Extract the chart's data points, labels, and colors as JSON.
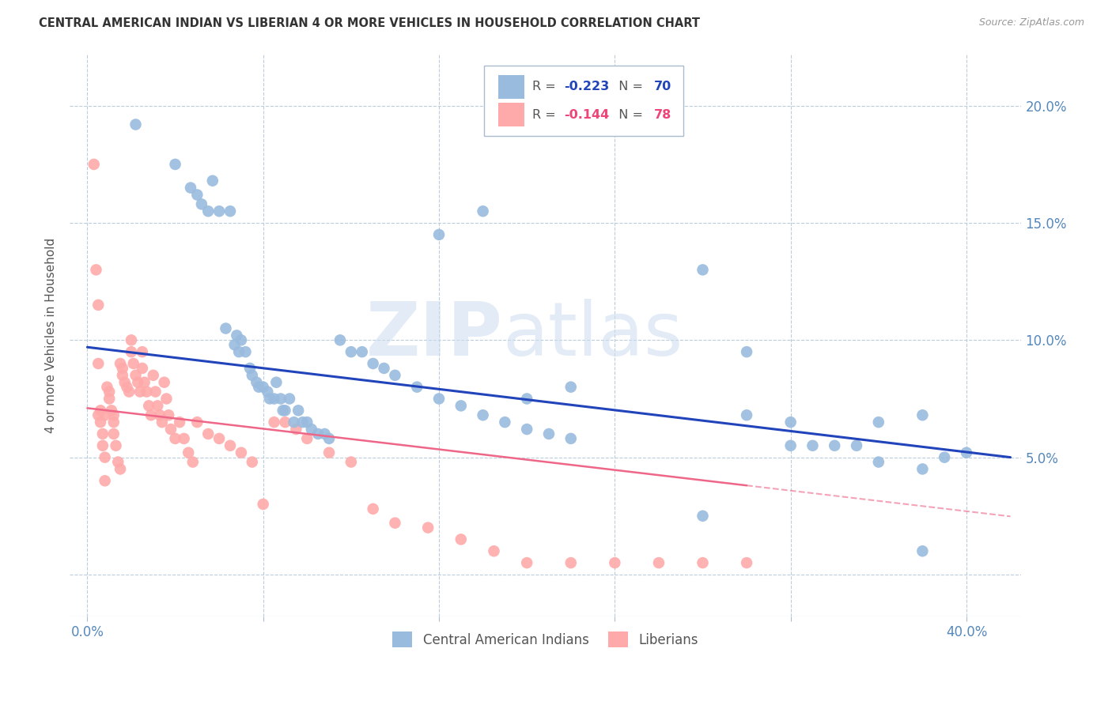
{
  "title": "CENTRAL AMERICAN INDIAN VS LIBERIAN 4 OR MORE VEHICLES IN HOUSEHOLD CORRELATION CHART",
  "source": "Source: ZipAtlas.com",
  "ylabel_text": "4 or more Vehicles in Household",
  "x_ticks": [
    0.0,
    0.08,
    0.16,
    0.24,
    0.32,
    0.4
  ],
  "x_tick_labels": [
    "0.0%",
    "",
    "",
    "",
    "",
    "40.0%"
  ],
  "y_ticks": [
    0.0,
    0.05,
    0.1,
    0.15,
    0.2
  ],
  "y_tick_labels_right": [
    "",
    "5.0%",
    "10.0%",
    "15.0%",
    "20.0%"
  ],
  "xlim": [
    -0.008,
    0.425
  ],
  "ylim": [
    -0.018,
    0.222
  ],
  "blue_R": "-0.223",
  "blue_N": "70",
  "pink_R": "-0.144",
  "pink_N": "78",
  "legend_label_blue": "Central American Indians",
  "legend_label_pink": "Liberians",
  "blue_color": "#99BBDD",
  "pink_color": "#FFAAAA",
  "trend_blue_color": "#2244BB",
  "trend_pink_color": "#EE6688",
  "watermark_zip": "ZIP",
  "watermark_atlas": "atlas",
  "blue_scatter_x": [
    0.022,
    0.04,
    0.047,
    0.05,
    0.052,
    0.055,
    0.057,
    0.06,
    0.063,
    0.065,
    0.067,
    0.068,
    0.069,
    0.07,
    0.072,
    0.074,
    0.075,
    0.077,
    0.078,
    0.08,
    0.082,
    0.083,
    0.085,
    0.086,
    0.088,
    0.089,
    0.09,
    0.092,
    0.094,
    0.096,
    0.098,
    0.1,
    0.102,
    0.105,
    0.108,
    0.11,
    0.115,
    0.12,
    0.125,
    0.13,
    0.135,
    0.14,
    0.15,
    0.16,
    0.17,
    0.18,
    0.19,
    0.2,
    0.21,
    0.22,
    0.28,
    0.3,
    0.32,
    0.33,
    0.35,
    0.36,
    0.38,
    0.39,
    0.4,
    0.38,
    0.3,
    0.32,
    0.28,
    0.34,
    0.36,
    0.38,
    0.2,
    0.22,
    0.16,
    0.18
  ],
  "blue_scatter_y": [
    0.192,
    0.175,
    0.165,
    0.162,
    0.158,
    0.155,
    0.168,
    0.155,
    0.105,
    0.155,
    0.098,
    0.102,
    0.095,
    0.1,
    0.095,
    0.088,
    0.085,
    0.082,
    0.08,
    0.08,
    0.078,
    0.075,
    0.075,
    0.082,
    0.075,
    0.07,
    0.07,
    0.075,
    0.065,
    0.07,
    0.065,
    0.065,
    0.062,
    0.06,
    0.06,
    0.058,
    0.1,
    0.095,
    0.095,
    0.09,
    0.088,
    0.085,
    0.08,
    0.075,
    0.072,
    0.068,
    0.065,
    0.062,
    0.06,
    0.058,
    0.025,
    0.095,
    0.065,
    0.055,
    0.055,
    0.048,
    0.045,
    0.05,
    0.052,
    0.01,
    0.068,
    0.055,
    0.13,
    0.055,
    0.065,
    0.068,
    0.075,
    0.08,
    0.145,
    0.155
  ],
  "pink_scatter_x": [
    0.003,
    0.004,
    0.005,
    0.005,
    0.006,
    0.006,
    0.007,
    0.007,
    0.008,
    0.008,
    0.009,
    0.01,
    0.01,
    0.011,
    0.012,
    0.012,
    0.013,
    0.014,
    0.015,
    0.015,
    0.016,
    0.016,
    0.017,
    0.018,
    0.019,
    0.02,
    0.02,
    0.021,
    0.022,
    0.023,
    0.024,
    0.025,
    0.025,
    0.026,
    0.027,
    0.028,
    0.029,
    0.03,
    0.031,
    0.032,
    0.033,
    0.034,
    0.035,
    0.036,
    0.037,
    0.038,
    0.04,
    0.042,
    0.044,
    0.046,
    0.048,
    0.05,
    0.055,
    0.06,
    0.065,
    0.07,
    0.075,
    0.08,
    0.085,
    0.09,
    0.095,
    0.1,
    0.11,
    0.12,
    0.13,
    0.14,
    0.155,
    0.17,
    0.185,
    0.2,
    0.22,
    0.24,
    0.26,
    0.28,
    0.3,
    0.005,
    0.008,
    0.012
  ],
  "pink_scatter_y": [
    0.175,
    0.13,
    0.115,
    0.09,
    0.07,
    0.065,
    0.06,
    0.055,
    0.05,
    0.04,
    0.08,
    0.078,
    0.075,
    0.07,
    0.065,
    0.06,
    0.055,
    0.048,
    0.045,
    0.09,
    0.088,
    0.085,
    0.082,
    0.08,
    0.078,
    0.1,
    0.095,
    0.09,
    0.085,
    0.082,
    0.078,
    0.095,
    0.088,
    0.082,
    0.078,
    0.072,
    0.068,
    0.085,
    0.078,
    0.072,
    0.068,
    0.065,
    0.082,
    0.075,
    0.068,
    0.062,
    0.058,
    0.065,
    0.058,
    0.052,
    0.048,
    0.065,
    0.06,
    0.058,
    0.055,
    0.052,
    0.048,
    0.03,
    0.065,
    0.065,
    0.062,
    0.058,
    0.052,
    0.048,
    0.028,
    0.022,
    0.02,
    0.015,
    0.01,
    0.005,
    0.005,
    0.005,
    0.005,
    0.005,
    0.005,
    0.068,
    0.068,
    0.068
  ],
  "blue_trend_x": [
    0.0,
    0.42
  ],
  "blue_trend_y": [
    0.097,
    0.05
  ],
  "pink_trend_x": [
    0.0,
    0.3
  ],
  "pink_trend_y": [
    0.071,
    0.038
  ]
}
